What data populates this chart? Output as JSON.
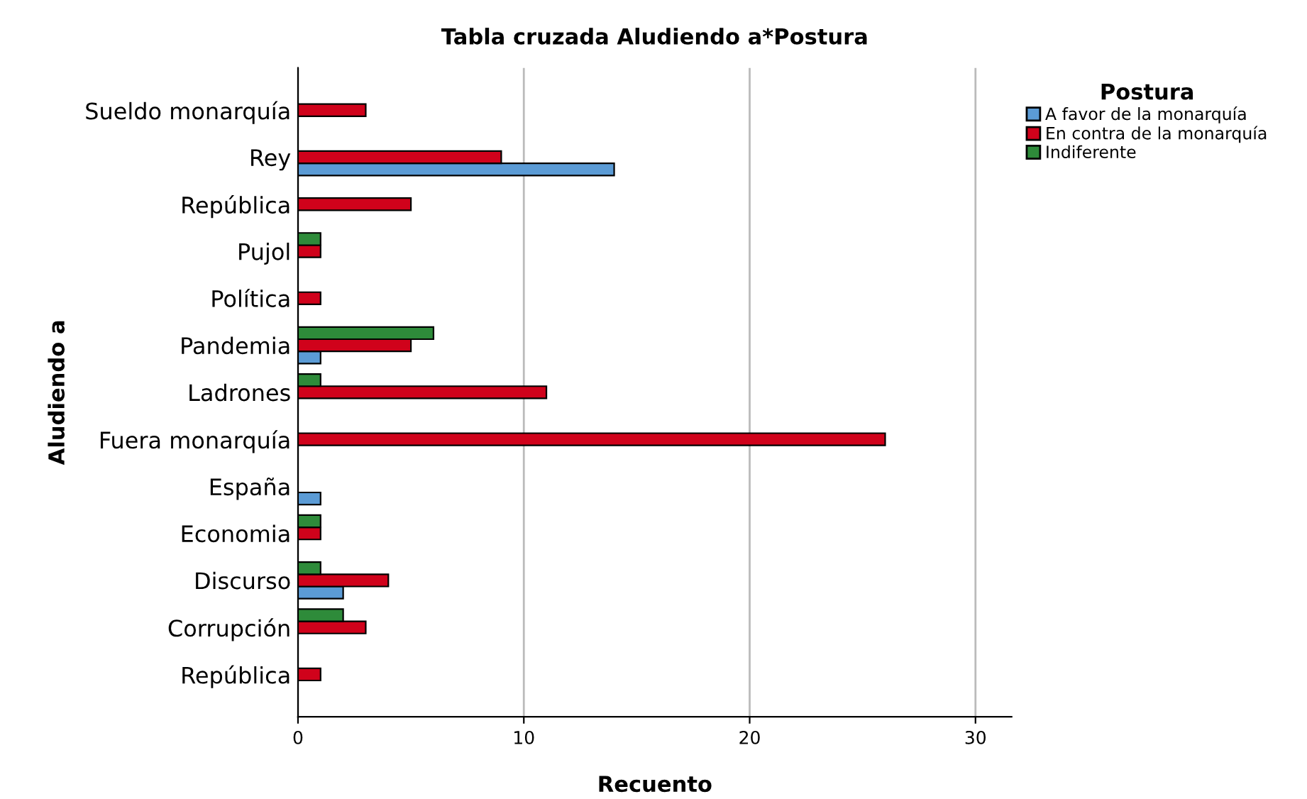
{
  "chart_data": {
    "type": "bar",
    "orientation": "horizontal",
    "title": "Tabla cruzada Aludiendo a*Postura",
    "xlabel": "Recuento",
    "ylabel": "Aludiendo a",
    "legend_title": "Postura",
    "legend": "top right",
    "grid": "x",
    "categories": [
      "Sueldo monarquía",
      "Rey",
      "República",
      "Pujol",
      "Política",
      "Pandemia",
      "Ladrones",
      "Fuera monarquía",
      "España",
      "Economia",
      "Discurso",
      "Corrupción",
      "República"
    ],
    "series": [
      {
        "name": "A favor de la monarquía",
        "color": "#5b9bd5",
        "values": [
          null,
          14,
          null,
          null,
          null,
          1,
          null,
          null,
          1,
          null,
          2,
          null,
          null
        ]
      },
      {
        "name": "En contra de la monarquía",
        "color": "#d0021b",
        "values": [
          3,
          9,
          5,
          1,
          1,
          5,
          11,
          26,
          null,
          1,
          4,
          3,
          1
        ]
      },
      {
        "name": "Indiferente",
        "color": "#2e8b3a",
        "values": [
          null,
          null,
          null,
          1,
          null,
          6,
          1,
          null,
          null,
          1,
          1,
          2,
          null
        ]
      }
    ],
    "xlim": [
      0,
      31.6
    ],
    "xticks": [
      0,
      10,
      20,
      30
    ]
  }
}
